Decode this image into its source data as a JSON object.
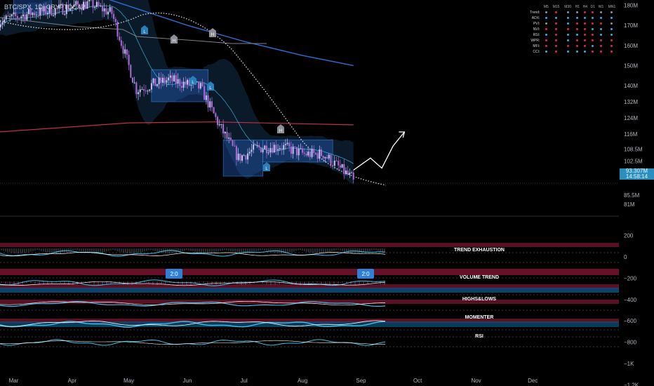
{
  "symbol": {
    "title": "BTC/SPX, 1D, CRYPTOCAP"
  },
  "price_axis": {
    "labels": [
      "180M",
      "170M",
      "160M",
      "150M",
      "140M",
      "132M",
      "124M",
      "116M",
      "108.5M",
      "102.5M",
      "96.5M",
      "85.5M",
      "81M"
    ],
    "current_price": "93.307M",
    "countdown": "14:58:14"
  },
  "osc_axis": {
    "labels": [
      "200",
      "0",
      "−200",
      "−400",
      "−600",
      "−800",
      "−1K",
      "−1.2K"
    ]
  },
  "time_axis": {
    "labels": [
      "Mar",
      "Apr",
      "May",
      "Jun",
      "Jul",
      "Aug",
      "Sep",
      "Oct",
      "Nov",
      "Dec"
    ]
  },
  "pane_labels": [
    "TREND EXHAUSTION",
    "VOLUME TREND",
    "HIGHS&LOWS",
    "MOMENTER",
    "RSI"
  ],
  "signal_badges": [
    "2:0",
    "2:0"
  ],
  "markers": {
    "low": "L",
    "high": "H"
  },
  "mtf_table": {
    "columns": [
      "M5",
      "M15",
      "M30",
      "H1",
      "H4",
      "D1",
      "W1",
      "MN1"
    ],
    "rows": [
      {
        "label": "Trend:",
        "cells": [
          "gray",
          "red",
          "gray",
          "gray",
          "red",
          "red",
          "gray",
          "gray"
        ]
      },
      {
        "label": "ADX:",
        "cells": [
          "blue",
          "blue",
          "blue",
          "blue",
          "blue",
          "blue",
          "blue",
          "blue"
        ]
      },
      {
        "label": "PVI:",
        "cells": [
          "gray",
          "red",
          "blue",
          "red",
          "red",
          "red",
          "red",
          "gray"
        ]
      },
      {
        "label": "NVI:",
        "cells": [
          "red",
          "red",
          "red",
          "red",
          "red",
          "blue",
          "blue",
          "blue"
        ]
      },
      {
        "label": "RSI:",
        "cells": [
          "blue",
          "red",
          "blue",
          "blue",
          "red",
          "red",
          "blue",
          "blue"
        ]
      },
      {
        "label": "WPR:",
        "cells": [
          "red",
          "red",
          "blue",
          "red",
          "red",
          "red",
          "red",
          "red"
        ]
      },
      {
        "label": "MFI:",
        "cells": [
          "red",
          "red",
          "red",
          "red",
          "red",
          "blue",
          "red",
          "red"
        ]
      },
      {
        "label": "CCI:",
        "cells": [
          "blue",
          "red",
          "blue",
          "blue",
          "blue",
          "red",
          "red",
          "red"
        ]
      }
    ]
  },
  "colors": {
    "bull": "#c6c6f6",
    "bear": "#b06ad6",
    "accent_blue": "#2f7fd8",
    "cyan": "#3fc1e8",
    "red": "#e0245e",
    "gray": "#9a9ea6"
  },
  "chart_data": {
    "type": "candlestick",
    "title": "BTC/SPX, 1D, CRYPTOCAP",
    "unit": "M",
    "ylim": [
      79,
      184
    ],
    "x_range": [
      "2024-02-22",
      "2024-12-31"
    ],
    "series": [
      {
        "name": "close_anchors",
        "dates": [
          "2024-02-22",
          "2024-03-10",
          "2024-03-25",
          "2024-04-10",
          "2024-04-22",
          "2024-05-05",
          "2024-05-22",
          "2024-06-08",
          "2024-06-18",
          "2024-06-28",
          "2024-07-08",
          "2024-07-20",
          "2024-08-02",
          "2024-08-12",
          "2024-08-22",
          "2024-08-28"
        ],
        "values": [
          172,
          176,
          178,
          181,
          176,
          138,
          143,
          139,
          120,
          104,
          109,
          110,
          106,
          106,
          98,
          93.3
        ]
      },
      {
        "name": "projection",
        "dates": [
          "2024-08-28",
          "2024-09-06",
          "2024-09-12",
          "2024-09-18",
          "2024-09-24"
        ],
        "values": [
          98,
          104,
          99,
          110,
          117
        ]
      },
      {
        "name": "upper_line",
        "dates": [
          "2024-04-20",
          "2024-06-01",
          "2024-07-01",
          "2024-08-01",
          "2024-08-28"
        ],
        "values": [
          183,
          170,
          162,
          155,
          150
        ]
      },
      {
        "name": "red_line",
        "dates": [
          "2024-02-22",
          "2024-05-01",
          "2024-06-15",
          "2024-08-28"
        ],
        "values": [
          117,
          121.5,
          122,
          120.5
        ]
      }
    ],
    "oscillator": {
      "ylim": [
        -1250,
        250
      ],
      "ticks": [
        200,
        0,
        -200,
        -400,
        -600,
        -800,
        -1000,
        -1200
      ]
    }
  }
}
